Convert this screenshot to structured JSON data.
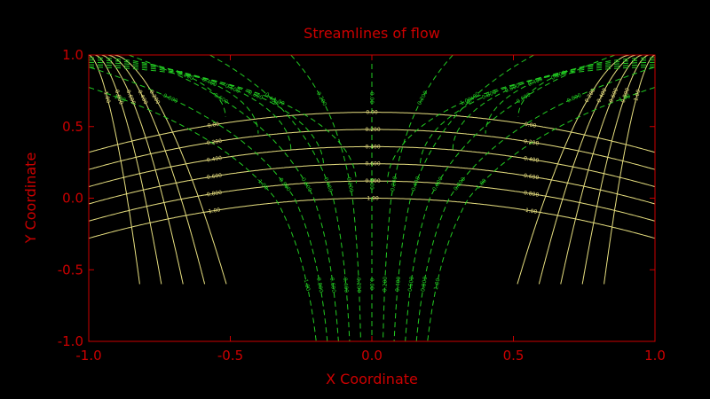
{
  "chart_data": {
    "type": "contour",
    "title": "Streamlines of flow",
    "xlabel": "X Coordinate",
    "ylabel": "Y Coordinate",
    "xlim": [
      -1.0,
      1.0
    ],
    "ylim": [
      -1.0,
      1.0
    ],
    "x_ticks": [
      "-1.0",
      "-0.5",
      "0.0",
      "0.5",
      "1.0"
    ],
    "y_ticks": [
      "-1.0",
      "-0.5",
      "0.0",
      "0.5",
      "1.0"
    ],
    "axis_color": "#cc0000",
    "background": "#000000",
    "series": [
      {
        "style": "solid",
        "color": "#e8e080",
        "levels": [
          0.0,
          -0.2,
          -0.4,
          -0.6,
          -0.8,
          -1.0
        ],
        "level_labels": [
          "0.00",
          "-0.200",
          "-0.400",
          "-0.600",
          "-0.800",
          "-1.00"
        ]
      },
      {
        "style": "dashed",
        "color": "#22cc22",
        "levels": [
          -1.0,
          -0.8,
          -0.6,
          -0.4,
          -0.2,
          0.0,
          0.2,
          0.4,
          0.6,
          0.8,
          1.0
        ],
        "level_labels": [
          "-1.00",
          "-0.800",
          "-0.600",
          "-0.400",
          "-0.200",
          "0.00",
          "0.200",
          "0.400",
          "0.600",
          "0.800",
          "1.00"
        ]
      }
    ]
  }
}
